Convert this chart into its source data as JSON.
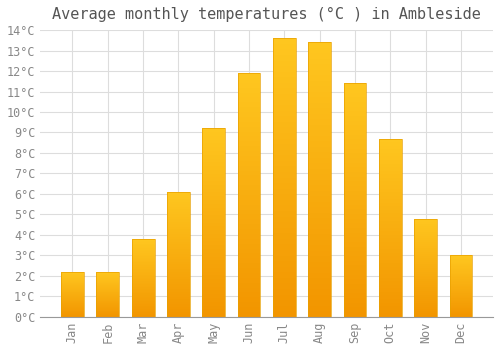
{
  "title": "Average monthly temperatures (°C ) in Ambleside",
  "months": [
    "Jan",
    "Feb",
    "Mar",
    "Apr",
    "May",
    "Jun",
    "Jul",
    "Aug",
    "Sep",
    "Oct",
    "Nov",
    "Dec"
  ],
  "values": [
    2.2,
    2.2,
    3.8,
    6.1,
    9.2,
    11.9,
    13.6,
    13.4,
    11.4,
    8.7,
    4.8,
    3.0
  ],
  "bar_color_top": "#FFB830",
  "bar_color_bottom": "#FF9500",
  "bar_edge_color": "#E8A000",
  "background_color": "#FFFFFF",
  "plot_bg_color": "#FFFFFF",
  "grid_color": "#DDDDDD",
  "text_color": "#888888",
  "ylim": [
    0,
    14
  ],
  "ytick_step": 1,
  "title_fontsize": 11,
  "tick_fontsize": 8.5,
  "font_family": "monospace",
  "bar_width": 0.65
}
